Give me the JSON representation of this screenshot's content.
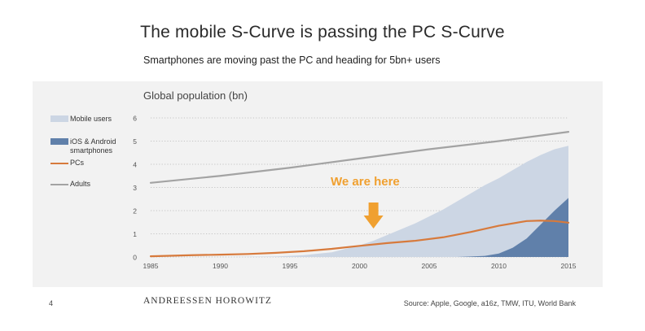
{
  "title": "The mobile S-Curve is passing the PC S-Curve",
  "subtitle": "Smartphones are moving past the PC and heading for 5bn+ users",
  "page_number": "4",
  "brand": "ANDREESSEN HOROWITZ",
  "source": "Source: Apple, Google, a16z, TMW, ITU, World Bank",
  "annotation": "We are here",
  "colors": {
    "mobile": "#ccd6e4",
    "smartphones": "#6080aa",
    "pcs": "#d77a3c",
    "adults": "#a3a3a3",
    "arrow": "#f0a030",
    "panel": "#f2f2f2"
  },
  "chart_data": {
    "type": "area",
    "title": "Global population (bn)",
    "xlabel": "",
    "ylabel": "",
    "xlim": [
      1985,
      2015
    ],
    "ylim": [
      0,
      6
    ],
    "x_ticks": [
      "1985",
      "1990",
      "1995",
      "2000",
      "2005",
      "2010",
      "2015"
    ],
    "y_ticks": [
      "0",
      "1",
      "2",
      "3",
      "4",
      "5",
      "6"
    ],
    "grid": "horizontal dotted",
    "legend_position": "left",
    "annotation_x": 2001,
    "series": [
      {
        "name": "Mobile users",
        "kind": "area",
        "x": [
          1985,
          1990,
          1994,
          1996,
          1998,
          2000,
          2001,
          2002,
          2003,
          2004,
          2005,
          2006,
          2007,
          2008,
          2009,
          2010,
          2011,
          2012,
          2013,
          2014,
          2015
        ],
        "values": [
          0,
          0,
          0.02,
          0.08,
          0.2,
          0.5,
          0.7,
          0.95,
          1.2,
          1.45,
          1.75,
          2.05,
          2.4,
          2.75,
          3.1,
          3.4,
          3.75,
          4.1,
          4.4,
          4.65,
          4.8
        ]
      },
      {
        "name": "iOS & Android smartphones",
        "kind": "area",
        "x": [
          2007,
          2008,
          2009,
          2010,
          2011,
          2012,
          2013,
          2014,
          2015
        ],
        "values": [
          0,
          0.02,
          0.05,
          0.15,
          0.4,
          0.8,
          1.4,
          2.0,
          2.55
        ]
      },
      {
        "name": "PCs",
        "kind": "line",
        "x": [
          1985,
          1988,
          1990,
          1992,
          1994,
          1996,
          1998,
          2000,
          2002,
          2004,
          2006,
          2008,
          2010,
          2012,
          2013,
          2014,
          2015
        ],
        "values": [
          0.03,
          0.08,
          0.1,
          0.13,
          0.18,
          0.25,
          0.35,
          0.48,
          0.6,
          0.7,
          0.85,
          1.08,
          1.35,
          1.55,
          1.57,
          1.55,
          1.48
        ]
      },
      {
        "name": "Adults",
        "kind": "line",
        "x": [
          1985,
          1990,
          1995,
          2000,
          2005,
          2010,
          2015
        ],
        "values": [
          3.2,
          3.5,
          3.85,
          4.25,
          4.65,
          5.0,
          5.4
        ]
      }
    ]
  }
}
